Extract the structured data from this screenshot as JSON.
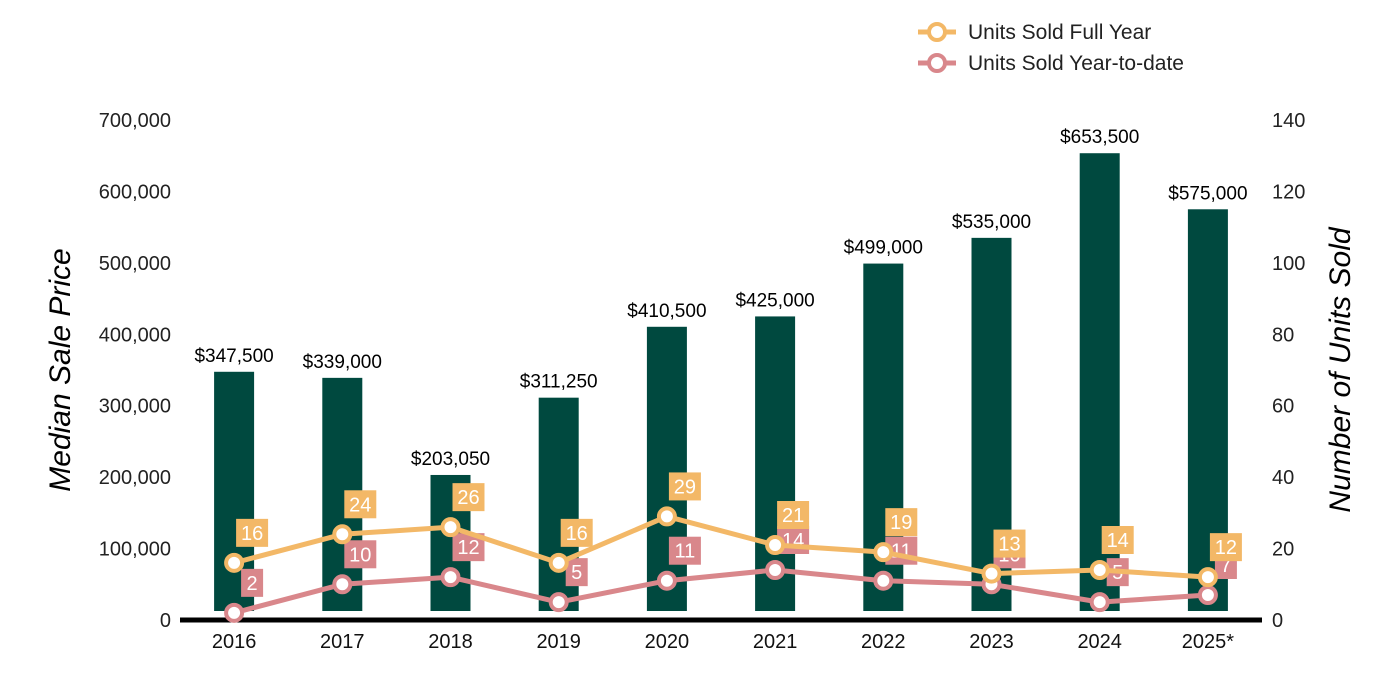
{
  "colors": {
    "bar": "#00493f",
    "full_year": "#f3b867",
    "ytd": "#d9878b",
    "axis_line": "#000000"
  },
  "chart_data": {
    "type": "bar",
    "categories": [
      "2016",
      "2017",
      "2018",
      "2019",
      "2020",
      "2021",
      "2022",
      "2023",
      "2024",
      "2025*"
    ],
    "ylabel": "Median Sale Price",
    "y2label": "Number of Units Sold",
    "ylim": [
      0,
      700000
    ],
    "y2lim": [
      0,
      140
    ],
    "yticks": [
      "0",
      "100,000",
      "200,000",
      "300,000",
      "400,000",
      "500,000",
      "600,000",
      "700,000"
    ],
    "y2ticks": [
      "0",
      "20",
      "40",
      "60",
      "80",
      "100",
      "120",
      "140"
    ],
    "grid": false,
    "legend_position": "top-right",
    "bars": {
      "values": [
        347500,
        339000,
        203050,
        311250,
        410500,
        425000,
        499000,
        535000,
        653500,
        575000
      ],
      "labels": [
        "$347,500",
        "$339,000",
        "$203,050",
        "$311,250",
        "$410,500",
        "$425,000",
        "$499,000",
        "$535,000",
        "$653,500",
        "$575,000"
      ]
    },
    "series": [
      {
        "name": "Units Sold Full Year",
        "type": "line",
        "axis": "right",
        "values": [
          16,
          24,
          26,
          16,
          29,
          21,
          19,
          13,
          14,
          12
        ]
      },
      {
        "name": "Units Sold Year-to-date",
        "type": "line",
        "axis": "right",
        "values": [
          2,
          10,
          12,
          5,
          11,
          14,
          11,
          10,
          5,
          7
        ]
      }
    ]
  }
}
